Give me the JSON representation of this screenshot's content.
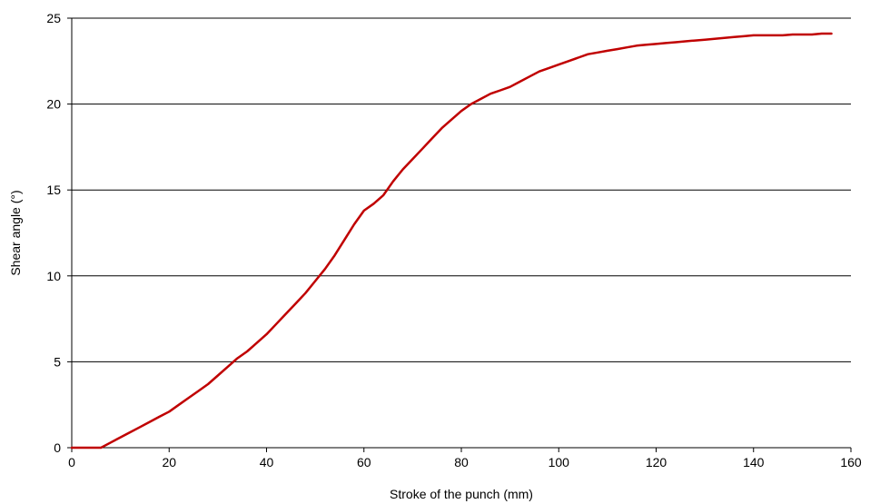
{
  "chart_data": {
    "type": "line",
    "title": "",
    "xlabel": "Stroke of the punch (mm)",
    "ylabel": "Shear angle (°)",
    "xlim": [
      0,
      160
    ],
    "ylim": [
      0,
      25
    ],
    "xticks": [
      0,
      20,
      40,
      60,
      80,
      100,
      120,
      140,
      160
    ],
    "yticks": [
      0,
      5,
      10,
      15,
      20,
      25
    ],
    "grid": "horizontal",
    "legend": "none",
    "series": [
      {
        "color": "#c00000",
        "x": [
          0,
          2,
          4,
          6,
          8,
          10,
          12,
          14,
          16,
          18,
          20,
          22,
          24,
          26,
          28,
          30,
          32,
          34,
          36,
          38,
          40,
          42,
          44,
          46,
          48,
          50,
          52,
          54,
          56,
          58,
          60,
          62,
          64,
          66,
          68,
          70,
          72,
          74,
          76,
          78,
          80,
          82,
          84,
          86,
          88,
          90,
          92,
          94,
          96,
          98,
          100,
          102,
          104,
          106,
          108,
          110,
          112,
          114,
          116,
          118,
          120,
          122,
          124,
          126,
          128,
          130,
          132,
          134,
          136,
          138,
          140,
          142,
          144,
          146,
          148,
          150,
          152,
          154,
          156
        ],
        "y": [
          0,
          0,
          0,
          0,
          0.3,
          0.6,
          0.9,
          1.2,
          1.5,
          1.8,
          2.1,
          2.5,
          2.9,
          3.3,
          3.7,
          4.2,
          4.7,
          5.2,
          5.6,
          6.1,
          6.6,
          7.2,
          7.8,
          8.4,
          9.0,
          9.7,
          10.4,
          11.2,
          12.1,
          13.0,
          13.8,
          14.2,
          14.7,
          15.5,
          16.2,
          16.8,
          17.4,
          18.0,
          18.6,
          19.1,
          19.6,
          20.0,
          20.3,
          20.6,
          20.8,
          21.0,
          21.3,
          21.6,
          21.9,
          22.1,
          22.3,
          22.5,
          22.7,
          22.9,
          23.0,
          23.1,
          23.2,
          23.3,
          23.4,
          23.45,
          23.5,
          23.55,
          23.6,
          23.65,
          23.7,
          23.75,
          23.8,
          23.85,
          23.9,
          23.95,
          24.0,
          24.0,
          24.0,
          24.0,
          24.05,
          24.05,
          24.05,
          24.1,
          24.1
        ]
      }
    ]
  }
}
